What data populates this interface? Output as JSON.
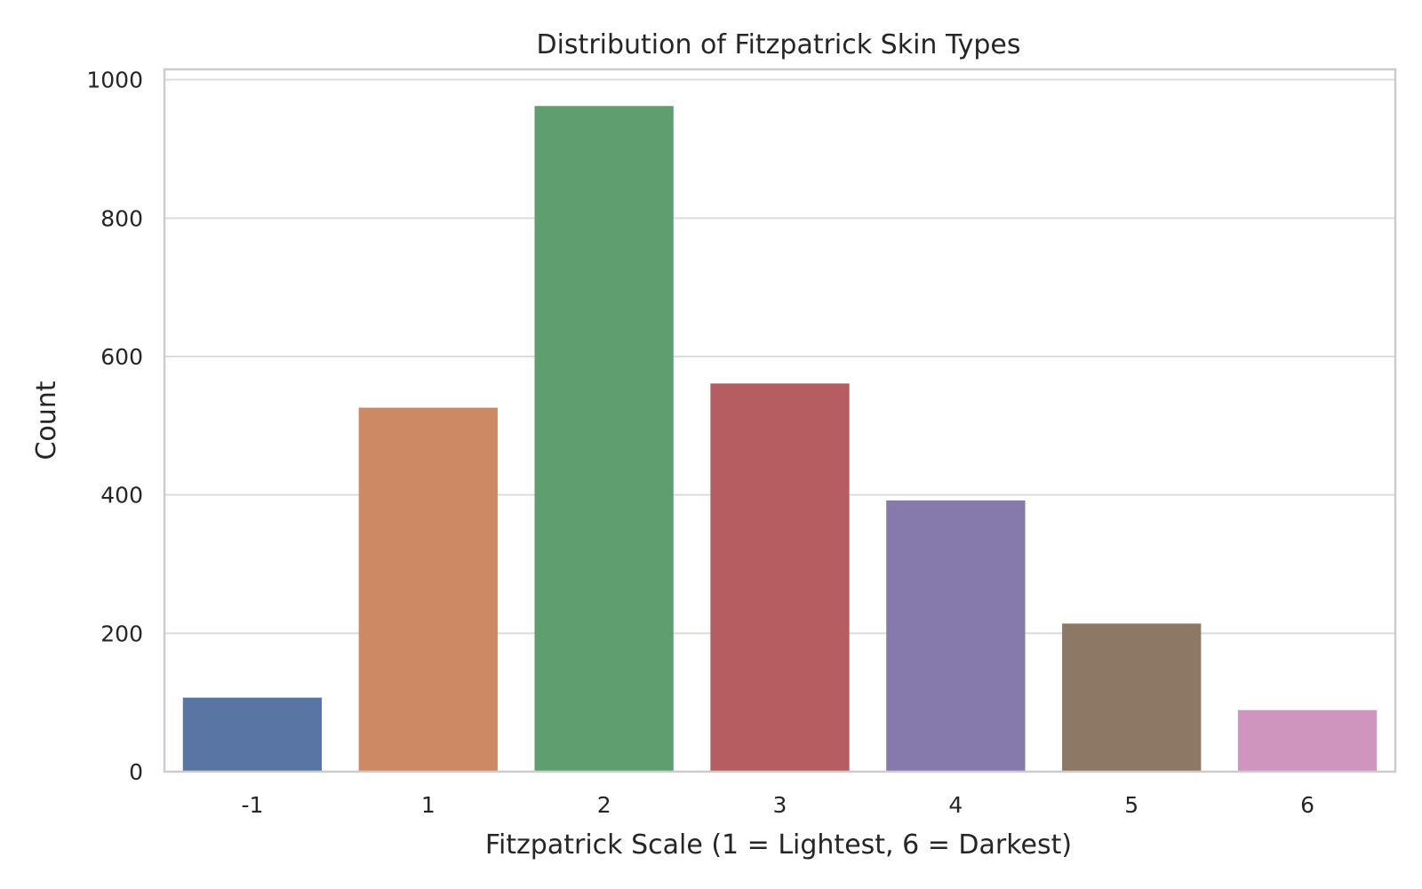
{
  "chart_data": {
    "type": "bar",
    "title": "Distribution of Fitzpatrick Skin Types",
    "xlabel": "Fitzpatrick Scale (1 = Lightest, 6 = Darkest)",
    "ylabel": "Count",
    "categories": [
      "-1",
      "1",
      "2",
      "3",
      "4",
      "5",
      "6"
    ],
    "values": [
      107,
      526,
      962,
      561,
      392,
      214,
      89
    ],
    "colors": [
      "#5875a4",
      "#cc8963",
      "#5f9e6e",
      "#b55d60",
      "#857aab",
      "#8d7866",
      "#d095bf"
    ],
    "ylim": [
      0,
      1015
    ],
    "yticks": [
      0,
      200,
      400,
      600,
      800,
      1000
    ],
    "grid": true,
    "legend": "none"
  }
}
